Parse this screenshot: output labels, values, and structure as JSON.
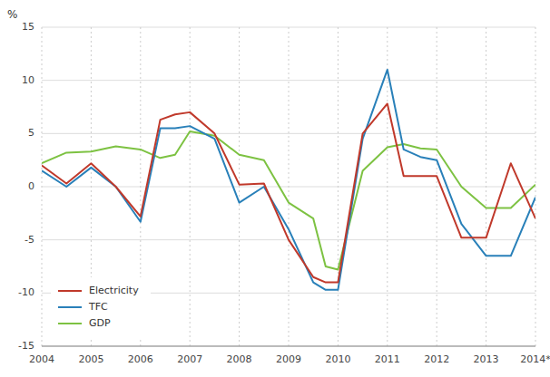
{
  "chart_data": {
    "type": "line",
    "y_label": "%",
    "x": [
      2004,
      2004.5,
      2005,
      2005.5,
      2006,
      2006.4,
      2006.7,
      2007,
      2007.5,
      2008,
      2008.5,
      2009,
      2009.5,
      2009.75,
      2010,
      2010.5,
      2011,
      2011.33,
      2011.67,
      2012,
      2012.5,
      2013,
      2013.5,
      2014
    ],
    "series": [
      {
        "name": "Electricity",
        "color": "#c0392b",
        "values": [
          2.0,
          0.3,
          2.2,
          0.0,
          -2.8,
          6.3,
          6.8,
          7.0,
          5.0,
          0.2,
          0.3,
          -5.0,
          -8.5,
          -9.0,
          -9.0,
          5.0,
          7.8,
          1.0,
          1.0,
          1.0,
          -4.8,
          -4.8,
          2.2,
          -3.0
        ]
      },
      {
        "name": "TFC",
        "color": "#2980b9",
        "values": [
          1.5,
          0.0,
          1.8,
          0.0,
          -3.3,
          5.5,
          5.5,
          5.7,
          4.5,
          -1.5,
          0.0,
          -4.0,
          -9.0,
          -9.7,
          -9.7,
          4.5,
          11.0,
          3.5,
          2.8,
          2.5,
          -3.5,
          -6.5,
          -6.5,
          -1.0
        ]
      },
      {
        "name": "GDP",
        "color": "#7dc242",
        "values": [
          2.2,
          3.2,
          3.3,
          3.8,
          3.5,
          2.7,
          3.0,
          5.2,
          4.8,
          3.0,
          2.5,
          -1.5,
          -3.0,
          -7.5,
          -7.8,
          1.5,
          3.7,
          4.0,
          3.6,
          3.5,
          0.0,
          -2.0,
          -2.0,
          0.2
        ]
      }
    ],
    "xlim": [
      2004,
      2014
    ],
    "xticks": [
      2004,
      2005,
      2006,
      2007,
      2008,
      2009,
      2010,
      2011,
      2012,
      2013,
      {
        "value": 2014,
        "label": "2014*"
      }
    ],
    "ylim": [
      -15,
      15
    ],
    "yticks": [
      -15,
      -10,
      -5,
      0,
      5,
      10,
      15
    ],
    "grid": true,
    "legend": "lower left"
  }
}
